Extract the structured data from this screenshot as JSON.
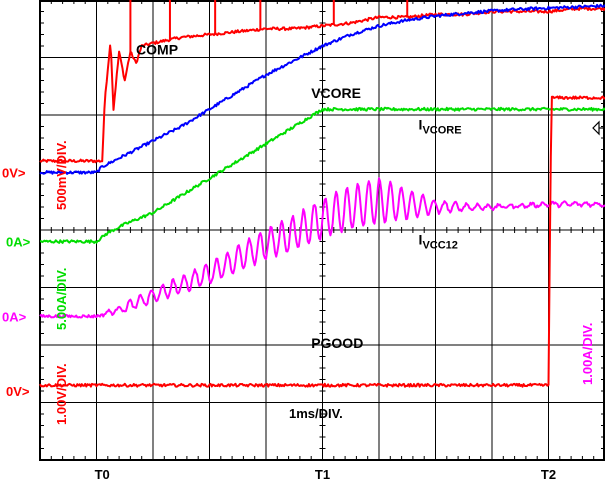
{
  "chart_data": {
    "type": "line",
    "title": "",
    "x_axis": {
      "divisions": 10,
      "scale_label": "1ms/DIV.",
      "markers": [
        {
          "label": "T0",
          "div": 1.1
        },
        {
          "label": "T1",
          "div": 5.0
        },
        {
          "label": "T2",
          "div": 9.0
        }
      ]
    },
    "y_axis": {
      "divisions": 8
    },
    "grid": true,
    "ground_markers": [
      {
        "label": "0V",
        "color": "#ff0000",
        "div": 5.0
      },
      {
        "label": "0A",
        "color": "#00dd00",
        "div": 3.8
      },
      {
        "label": "0A",
        "color": "#ff00ff",
        "div": 2.5
      },
      {
        "label": "0V",
        "color": "#ff0000",
        "div": 1.2
      }
    ],
    "scale_labels": [
      {
        "text": "500mV/DIV.",
        "color": "#ff0000"
      },
      {
        "text": "5.00A/DIV.",
        "color": "#00dd00"
      },
      {
        "text": "1.00V/DIV.",
        "color": "#ff0000"
      },
      {
        "text": "1.00A/DIV.",
        "color": "#ff00ff"
      }
    ],
    "series": [
      {
        "name": "COMP",
        "color": "#ff0000",
        "x": [
          0,
          1.1,
          1.15,
          1.25,
          1.3,
          1.4,
          1.5,
          1.6,
          1.7,
          1.8,
          2.0,
          2.5,
          3.0,
          3.5,
          4.0,
          4.5,
          5.0,
          5.5,
          6.0,
          6.5,
          7.0,
          7.5,
          8.0,
          8.5,
          9.0,
          9.5,
          10
        ],
        "y": [
          5.2,
          5.2,
          6.3,
          7.3,
          6.1,
          7.1,
          6.6,
          7.1,
          6.9,
          7.2,
          7.25,
          7.35,
          7.4,
          7.45,
          7.5,
          7.5,
          7.55,
          7.6,
          7.7,
          7.7,
          7.75,
          7.75,
          7.8,
          7.8,
          7.8,
          7.85,
          7.85
        ],
        "spikes": [
          {
            "x": 1.6,
            "y": 8.0
          },
          {
            "x": 2.3,
            "y": 8.1
          },
          {
            "x": 3.1,
            "y": 8.2
          },
          {
            "x": 3.9,
            "y": 8.05
          },
          {
            "x": 5.2,
            "y": 8.15
          },
          {
            "x": 6.5,
            "y": 8.1
          }
        ]
      },
      {
        "name": "VCORE",
        "color": "#0000ff",
        "x": [
          0,
          1.0,
          1.1,
          1.5,
          2.0,
          2.5,
          3.0,
          3.5,
          4.0,
          4.5,
          5.0,
          5.5,
          6.0,
          6.5,
          7.0,
          7.5,
          8.0,
          8.5,
          9.0,
          9.5,
          10
        ],
        "y": [
          5.0,
          5.0,
          5.1,
          5.3,
          5.55,
          5.8,
          6.1,
          6.4,
          6.7,
          6.95,
          7.2,
          7.4,
          7.55,
          7.65,
          7.72,
          7.77,
          7.81,
          7.84,
          7.86,
          7.88,
          7.9
        ]
      },
      {
        "name": "IVCORE",
        "label_main": "I",
        "label_sub": "VCORE",
        "color": "#00dd00",
        "x": [
          0,
          1.0,
          1.2,
          1.5,
          2.0,
          2.5,
          3.0,
          3.5,
          4.0,
          4.5,
          5.0,
          5.5,
          6.0,
          6.5,
          7.0,
          7.5,
          8.0,
          8.5,
          9.0,
          9.5,
          10
        ],
        "y": [
          3.8,
          3.8,
          3.95,
          4.1,
          4.3,
          4.6,
          4.9,
          5.2,
          5.5,
          5.8,
          6.1,
          6.1,
          6.1,
          6.1,
          6.1,
          6.1,
          6.1,
          6.1,
          6.1,
          6.1,
          6.1
        ]
      },
      {
        "name": "IVCC12",
        "label_main": "I",
        "label_sub": "VCC12",
        "color": "#ff00ff",
        "x": [
          0,
          1.0,
          1.5,
          2.0,
          2.5,
          3.0,
          3.5,
          4.0,
          4.5,
          5.0,
          5.5,
          6.0,
          6.5,
          7.0,
          7.5,
          8.0,
          8.5,
          9.0,
          9.5,
          10
        ],
        "y": [
          2.5,
          2.5,
          2.65,
          2.85,
          3.05,
          3.25,
          3.5,
          3.75,
          3.95,
          4.2,
          4.4,
          4.5,
          4.45,
          4.4,
          4.4,
          4.4,
          4.42,
          4.45,
          4.45,
          4.45
        ],
        "ripple_amplitude": [
          0,
          0,
          0.08,
          0.12,
          0.15,
          0.18,
          0.22,
          0.26,
          0.3,
          0.34,
          0.38,
          0.4,
          0.25,
          0.12,
          0.06,
          0.04,
          0.03,
          0.03,
          0.03,
          0.03
        ]
      },
      {
        "name": "PGOOD",
        "color": "#ff0000",
        "x": [
          0,
          1.0,
          2.0,
          3.0,
          4.0,
          5.0,
          6.0,
          7.0,
          8.0,
          8.99,
          9.0,
          9.05,
          9.1,
          9.5,
          10
        ],
        "y": [
          1.3,
          1.3,
          1.3,
          1.3,
          1.3,
          1.3,
          1.3,
          1.3,
          1.3,
          1.3,
          1.3,
          6.3,
          6.3,
          6.3,
          6.3
        ]
      }
    ],
    "trace_labels": [
      {
        "series": "COMP",
        "x": 1.7,
        "y": 7.05
      },
      {
        "series": "VCORE",
        "x": 4.8,
        "y": 6.3
      },
      {
        "series": "IVCORE",
        "x": 6.7,
        "y": 5.75
      },
      {
        "series": "IVCC12",
        "x": 6.7,
        "y": 3.75
      },
      {
        "series": "PGOOD",
        "x": 4.8,
        "y": 1.95
      }
    ]
  }
}
